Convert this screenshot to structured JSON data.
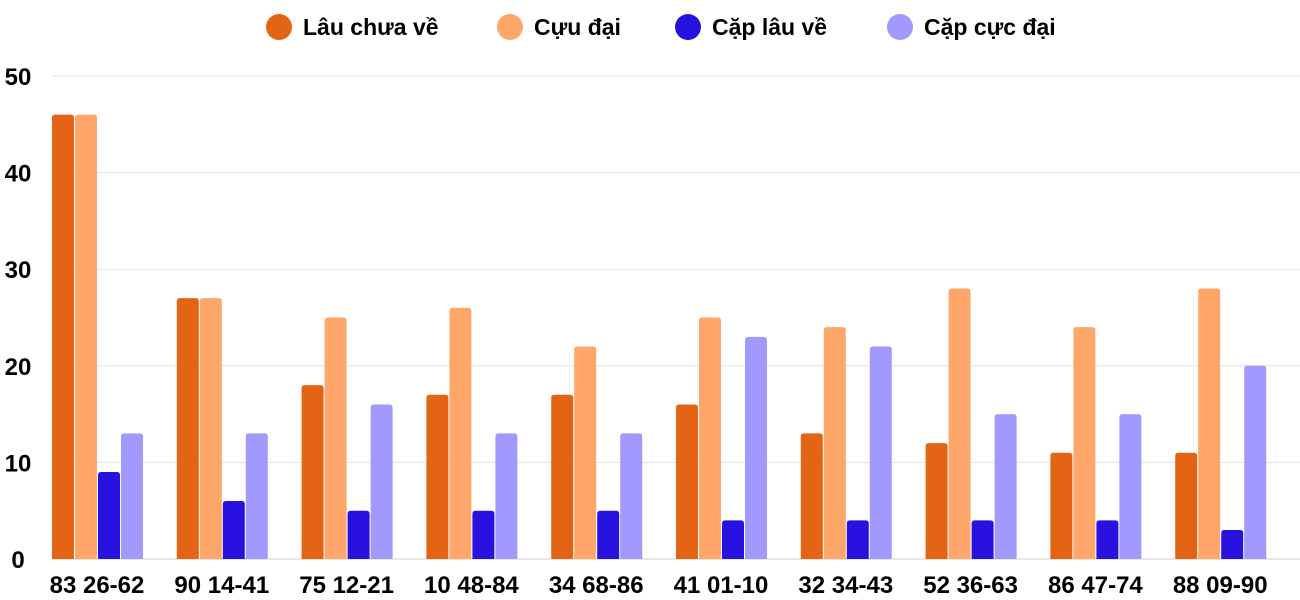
{
  "chart_data": {
    "type": "bar",
    "title": "",
    "xlabel": "",
    "ylabel": "",
    "ylim": [
      0,
      50
    ],
    "yticks": [
      0,
      10,
      20,
      30,
      40,
      50
    ],
    "grid": true,
    "legend_position": "top-center",
    "categories": [
      "83 26-62",
      "90 14-41",
      "75 12-21",
      "10 48-84",
      "34 68-86",
      "41 01-10",
      "32 34-43",
      "52 36-63",
      "86 47-74",
      "88 09-90"
    ],
    "series": [
      {
        "name": "Lâu chưa về",
        "color": "#E36414",
        "values": [
          46,
          27,
          18,
          17,
          17,
          16,
          13,
          12,
          11,
          11
        ]
      },
      {
        "name": "Cựu đại",
        "color": "#FFA66B",
        "values": [
          46,
          27,
          25,
          26,
          22,
          25,
          24,
          28,
          24,
          28
        ]
      },
      {
        "name": "Cặp lâu về",
        "color": "#2812E0",
        "values": [
          9,
          6,
          5,
          5,
          5,
          4,
          4,
          4,
          4,
          3
        ]
      },
      {
        "name": "Cặp cực đại",
        "color": "#A299FF",
        "values": [
          13,
          13,
          16,
          13,
          13,
          23,
          22,
          15,
          15,
          20
        ]
      }
    ]
  }
}
